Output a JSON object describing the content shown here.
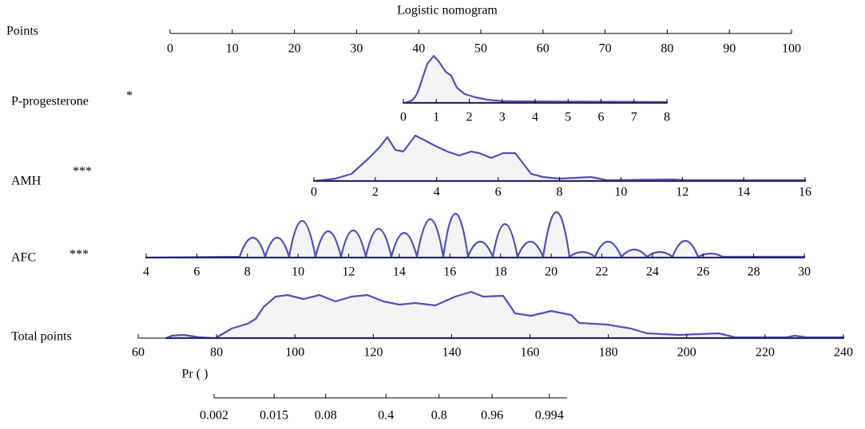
{
  "chart_data": {
    "type": "nomogram",
    "title": "Logistic nomogram",
    "scales": [
      {
        "label": "Points",
        "xlim": [
          0,
          100
        ],
        "xticks": [
          0,
          10,
          20,
          30,
          40,
          50,
          60,
          70,
          80,
          90,
          100
        ]
      },
      {
        "label": "P-progesterone",
        "marker": "*",
        "xlim": [
          0,
          8
        ],
        "xticks": [
          0,
          1,
          2,
          3,
          4,
          5,
          6,
          7,
          8
        ]
      },
      {
        "label": "AMH",
        "marker": "***",
        "xlim": [
          0,
          16
        ],
        "xticks": [
          0,
          2,
          4,
          6,
          8,
          10,
          12,
          14,
          16
        ]
      },
      {
        "label": "AFC",
        "marker": "***",
        "xlim": [
          4,
          30
        ],
        "xticks": [
          4,
          6,
          8,
          10,
          12,
          14,
          16,
          18,
          20,
          22,
          24,
          26,
          28,
          30
        ]
      },
      {
        "label": "Total points",
        "xlim": [
          60,
          240
        ],
        "xticks": [
          60,
          80,
          100,
          120,
          140,
          160,
          180,
          200,
          220,
          240
        ]
      },
      {
        "label": "Pr ( )",
        "scale": "logit",
        "xlim": [
          0.002,
          0.9967
        ],
        "xticks": [
          0.002,
          0.015,
          0.08,
          0.4,
          0.8,
          0.96,
          0.994
        ]
      }
    ]
  }
}
